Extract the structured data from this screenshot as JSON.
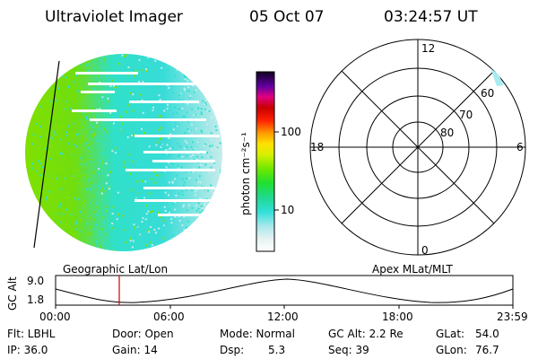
{
  "header": {
    "title": "Ultraviolet Imager",
    "date": "05 Oct 07",
    "time": "03:24:57 UT"
  },
  "colorbar": {
    "label": "photon cm⁻²s⁻¹",
    "tick_100": "100",
    "tick_10": "10",
    "scale": "log",
    "range": [
      3,
      600
    ]
  },
  "polar_plot": {
    "label_top": "12",
    "label_bottom": "0",
    "label_left": "18",
    "label_right": "6",
    "ring_60": "60",
    "ring_70": "70",
    "ring_80": "80"
  },
  "timeline": {
    "left_caption": "Geographic Lat/Lon",
    "right_caption": "Apex MLat/MLT",
    "ylabel": "GC Alt",
    "ytick_top": "9.0",
    "ytick_bottom": "1.8",
    "xticks": [
      "00:00",
      "06:00",
      "12:00",
      "18:00",
      "23:59"
    ],
    "marker_time": "03:24:57"
  },
  "info": {
    "row1": {
      "flt": "Flt: LBHL",
      "door": "Door: Open",
      "mode": "Mode: Normal",
      "gcalt": "GC Alt: 2.2 Re",
      "glat_label": "GLat:",
      "glat_value": "54.0"
    },
    "row2": {
      "ip": "IP: 36.0",
      "gain": "Gain: 14",
      "dsp_label": "Dsp:",
      "dsp_value": "5.3",
      "seq": "Seq: 39",
      "glon_label": "GLon:",
      "glon_value": "76.7"
    }
  },
  "colors": {
    "image_green": "#7fe000",
    "image_cyan": "#30e0d0",
    "image_pale": "#c8ecec",
    "marker": "#cc0000"
  }
}
